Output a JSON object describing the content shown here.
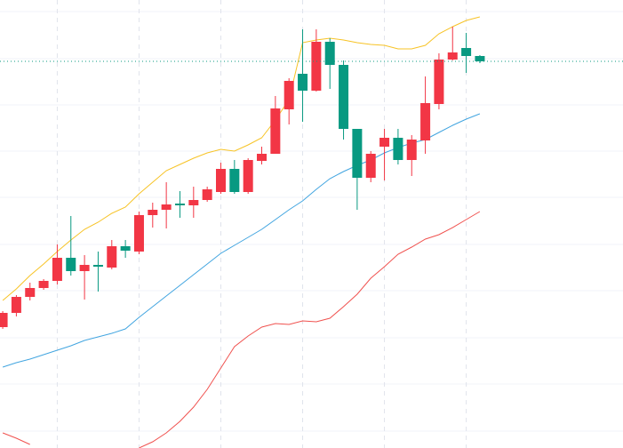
{
  "chart_data": {
    "type": "candlestick",
    "x": [
      0,
      1,
      2,
      3,
      4,
      5,
      6,
      7,
      8,
      9,
      10,
      11,
      12,
      13,
      14,
      15,
      16,
      17,
      18,
      19,
      20,
      21,
      22,
      23,
      24,
      25,
      26,
      27,
      28,
      29,
      30,
      31,
      32,
      33,
      34,
      35
    ],
    "open": [
      136,
      152,
      170,
      180,
      188,
      214,
      199,
      206,
      203,
      227,
      221,
      262,
      268,
      275,
      273,
      279,
      288,
      314,
      288,
      323,
      331,
      381,
      421,
      402,
      457,
      431,
      359,
      304,
      339,
      349,
      324,
      346,
      387,
      437,
      450,
      441
    ],
    "high": [
      154,
      172,
      186,
      190,
      229,
      261,
      217,
      221,
      234,
      234,
      266,
      276,
      299,
      289,
      294,
      294,
      321,
      324,
      326,
      339,
      396,
      416,
      471,
      471,
      461,
      436,
      359,
      334,
      359,
      359,
      352,
      418,
      444,
      474,
      467,
      442
    ],
    "low": [
      134,
      148,
      166,
      178,
      184,
      194,
      167,
      176,
      201,
      214,
      218,
      248,
      247,
      259,
      259,
      277,
      286,
      286,
      286,
      319,
      331,
      364,
      367,
      401,
      404,
      347,
      268,
      299,
      301,
      319,
      306,
      331,
      381,
      436,
      422,
      433
    ],
    "close": [
      152,
      170,
      180,
      188,
      214,
      199,
      206,
      204,
      227,
      222,
      262,
      268,
      274,
      273,
      279,
      291,
      314,
      288,
      324,
      331,
      382,
      413,
      402,
      457,
      431,
      359,
      304,
      331,
      349,
      324,
      347,
      388,
      437,
      445,
      441,
      435
    ],
    "up_color": "#f23645",
    "down_color": "#089981",
    "series": [
      {
        "color": "#f7c325",
        "values": [
          166,
          179,
          194,
          207,
          221,
          234,
          246,
          254,
          264,
          271,
          286,
          299,
          312,
          319,
          326,
          332,
          336,
          334,
          341,
          349,
          369,
          392,
          456,
          459,
          461,
          459,
          456,
          454,
          453,
          449,
          449,
          453,
          466,
          474,
          481,
          485
        ]
      },
      {
        "color": "#42a5e0",
        "values": [
          91,
          96,
          100,
          105,
          110,
          115,
          121,
          125,
          129,
          134,
          147,
          159,
          171,
          183,
          195,
          207,
          219,
          228,
          237,
          246,
          257,
          268,
          278,
          291,
          303,
          311,
          318,
          324,
          332,
          338,
          343,
          347,
          355,
          363,
          370,
          376
        ]
      },
      {
        "color": "#f0524f",
        "values": [
          17,
          11,
          4,
          null,
          null,
          null,
          null,
          null,
          null,
          null,
          0,
          7,
          17,
          30,
          46,
          66,
          90,
          114,
          126,
          136,
          140,
          139,
          143,
          142,
          146,
          159,
          173,
          191,
          204,
          218,
          226,
          235,
          240,
          248,
          257,
          266
        ]
      }
    ],
    "price_line": 435,
    "price_line_color": "#089981",
    "xlim": [
      -0.2,
      45.5
    ],
    "ylim": [
      0,
      504
    ],
    "xticks": [
      4,
      10,
      16,
      22,
      28,
      34
    ],
    "yticks": [
      19,
      72,
      124,
      177,
      229,
      282,
      334,
      386,
      438,
      491
    ],
    "grid": true
  }
}
